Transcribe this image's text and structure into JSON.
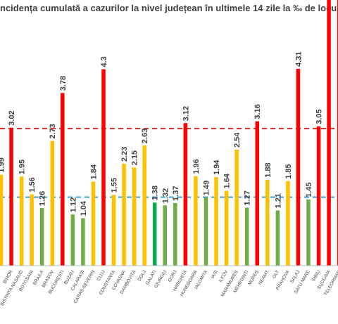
{
  "chart_data": {
    "type": "bar",
    "title": "ncidența cumulată a cazurilor la nivel județean în ultimele 14 zile la ‰ de locu",
    "xlabel": "",
    "ylabel": "",
    "ylim": [
      0,
      4.6
    ],
    "grid": false,
    "legend": "none",
    "reference_lines": [
      {
        "value": 3.0,
        "color": "#e03030",
        "style": "dashed"
      },
      {
        "value": 1.5,
        "color": "#3aa0d8",
        "style": "dashed"
      }
    ],
    "categories": [
      "",
      "BIHOR",
      "BISTRITA NASAUD",
      "BOTOSANI",
      "BRAILA",
      "BRASOV",
      "BUCURESTI",
      "BUZAU",
      "CALARASI",
      "CARAS-SEVERIN",
      "CLUJ",
      "CONSTANTA",
      "COVASNA",
      "DAMBOVITA",
      "DOLJ",
      "GALATI",
      "GIURGIU",
      "GORJ",
      "HARGHITA",
      "HUNEDOARA",
      "IALOMITA",
      "IASI",
      "ILFOV",
      "MARAMURES",
      "MEHEDINTI",
      "MURES",
      "NEAMT",
      "OLT",
      "PRAHOVA",
      "SALAJ",
      "SATU MARE",
      "SIBIU",
      "SUCEAVA",
      "TELEORMAN"
    ],
    "values": [
      1.99,
      3.02,
      1.95,
      1.56,
      1.26,
      2.73,
      3.78,
      1.12,
      1.04,
      1.84,
      4.3,
      1.55,
      2.23,
      2.15,
      2.63,
      1.38,
      1.32,
      1.37,
      3.12,
      1.96,
      1.49,
      1.94,
      1.64,
      2.54,
      1.27,
      3.16,
      1.88,
      1.21,
      1.85,
      4.31,
      1.45,
      3.05,
      null,
      null
    ],
    "value_labels": [
      "1.99",
      "3.02",
      "1.95",
      "1.56",
      "1.26",
      "2.73",
      "3.78",
      "1.12",
      "1.04",
      "1.84",
      "4.3",
      "1.55",
      "2.23",
      "2.15",
      "2.63",
      "1.38",
      "1.32",
      "1.37",
      "3.12",
      "1.96",
      "1.49",
      "1.94",
      "1.64",
      "2.54",
      "1.27",
      "3.16",
      "1.88",
      "1.21",
      "1.85",
      "4.31",
      "1.45",
      "3.05",
      "",
      ""
    ],
    "bar_colors": [
      "#ffc000",
      "#ff0000",
      "#ffc000",
      "#ffc000",
      "#70ad47",
      "#ffc000",
      "#ff0000",
      "#70ad47",
      "#70ad47",
      "#ffc000",
      "#ff0000",
      "#ffc000",
      "#ffc000",
      "#ffc000",
      "#ffc000",
      "#00b050",
      "#70ad47",
      "#70ad47",
      "#ff0000",
      "#ffc000",
      "#70ad47",
      "#ffc000",
      "#ffc000",
      "#ffc000",
      "#70ad47",
      "#ff0000",
      "#ffc000",
      "#70ad47",
      "#ffc000",
      "#ff0000",
      "#70ad47",
      "#ff0000",
      "#ff0000",
      "#ff0000"
    ]
  }
}
